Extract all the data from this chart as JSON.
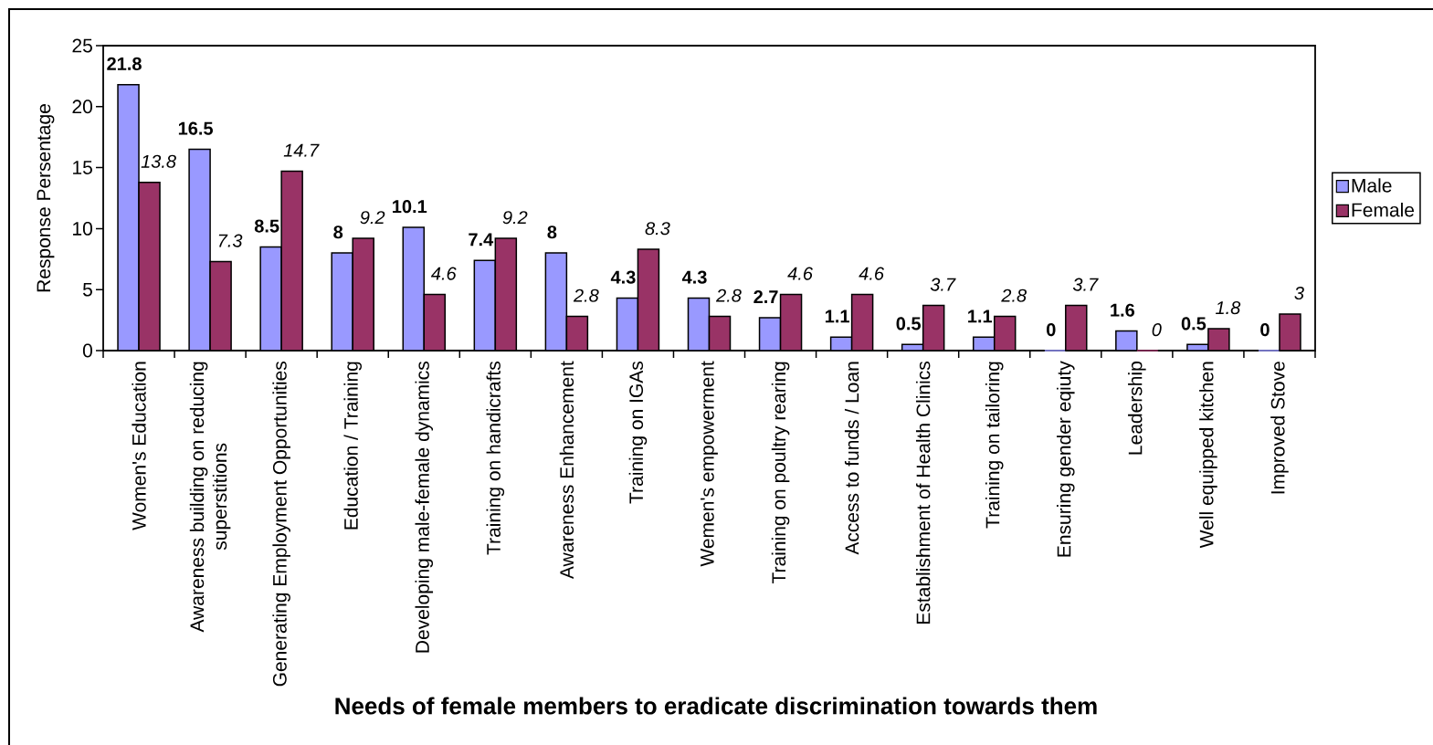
{
  "chart_data": {
    "type": "bar",
    "xlabel": "Needs of female members to eradicate discrimination towards them",
    "ylabel": "Response Persentage",
    "categories": [
      "Women's Education",
      "Awareness building on reducing superstitions",
      "Generating Employment Opportunities",
      "Education / Training",
      "Developing male-female dynamics",
      "Training on handicrafts",
      "Awareness Enhancement",
      "Training on IGAs",
      "Wemen's empowerment",
      "Training on poultry rearing",
      "Access to funds / Loan",
      "Establishment of Health Clinics",
      "Training on tailoring",
      "Ensuring gender eqiuty",
      "Leadership",
      "Well equipped kitchen",
      "Improved Stove"
    ],
    "series": [
      {
        "name": "Male",
        "color": "#9999ff",
        "values": [
          21.8,
          16.5,
          8.5,
          8,
          10.1,
          7.4,
          8,
          4.3,
          4.3,
          2.7,
          1.1,
          0.5,
          1.1,
          0,
          1.6,
          0.5,
          0
        ]
      },
      {
        "name": "Female",
        "color": "#993366",
        "values": [
          13.8,
          7.3,
          14.7,
          9.2,
          4.6,
          9.2,
          2.8,
          8.3,
          2.8,
          4.6,
          4.6,
          3.7,
          2.8,
          3.7,
          0,
          1.8,
          3
        ]
      }
    ],
    "ylim": [
      0,
      25
    ],
    "yticks": [
      0,
      5,
      10,
      15,
      20,
      25
    ],
    "legend": "right",
    "data_labels": true
  }
}
